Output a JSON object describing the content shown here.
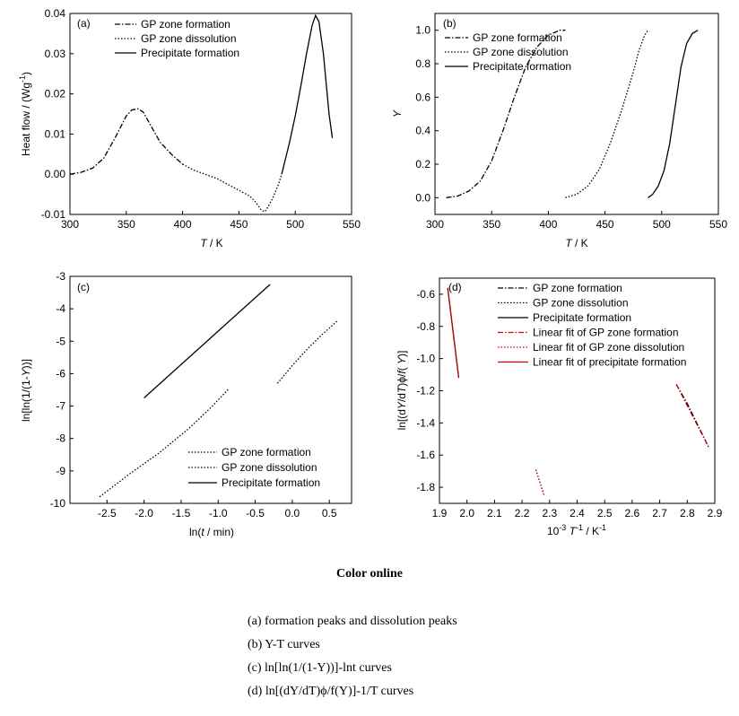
{
  "caption": {
    "title": "Color online",
    "lines": [
      "(a) formation peaks and dissolution peaks",
      "(b) Y-T curves",
      "(c) ln[ln(1/(1-Y))]-lnt curves",
      "(d) ln[(dY/dT)ϕ/f(Y)]-1/T curves"
    ]
  },
  "chart_data": [
    {
      "type": "line",
      "panel": "(a)",
      "xlabel": "T / K",
      "ylabel": "Heat flow / (Wg-1)",
      "xlim": [
        300,
        550
      ],
      "ylim": [
        -0.01,
        0.04
      ],
      "xticks": [
        300,
        350,
        400,
        450,
        500,
        550
      ],
      "yticks": [
        -0.01,
        0.0,
        0.01,
        0.02,
        0.03,
        0.04
      ],
      "ytick_labels": [
        "-0.01",
        "0.00",
        "0.01",
        "0.02",
        "0.03",
        "0.04"
      ],
      "legend": "top-left",
      "series": [
        {
          "name": "GP zone formation",
          "style": "dashdot",
          "x": [
            300,
            310,
            320,
            330,
            340,
            350,
            355,
            360,
            365,
            370,
            380,
            390,
            400
          ],
          "y": [
            0.0,
            0.0005,
            0.0015,
            0.004,
            0.009,
            0.0145,
            0.016,
            0.0163,
            0.0155,
            0.013,
            0.008,
            0.005,
            0.0025
          ]
        },
        {
          "name": "GP zone dissolution",
          "style": "dotted",
          "x": [
            400,
            410,
            420,
            430,
            440,
            450,
            460,
            465,
            470,
            473,
            476,
            480,
            485,
            488
          ],
          "y": [
            0.0025,
            0.001,
            0.0,
            -0.001,
            -0.0025,
            -0.004,
            -0.0055,
            -0.007,
            -0.009,
            -0.0093,
            -0.008,
            -0.006,
            -0.0025,
            0.0
          ]
        },
        {
          "name": "Precipitate formation",
          "style": "solid",
          "x": [
            488,
            495,
            500,
            505,
            510,
            515,
            518,
            521,
            525,
            530,
            533
          ],
          "y": [
            0.0,
            0.008,
            0.0145,
            0.022,
            0.03,
            0.037,
            0.0395,
            0.038,
            0.03,
            0.015,
            0.009
          ]
        }
      ]
    },
    {
      "type": "line",
      "panel": "(b)",
      "xlabel": "T / K",
      "ylabel": "Y",
      "xlim": [
        300,
        550
      ],
      "ylim": [
        -0.1,
        1.1
      ],
      "xticks": [
        300,
        350,
        400,
        450,
        500,
        550
      ],
      "yticks": [
        0.0,
        0.2,
        0.4,
        0.6,
        0.8,
        1.0
      ],
      "ytick_labels": [
        "0.0",
        "0.2",
        "0.4",
        "0.6",
        "0.8",
        "1.0"
      ],
      "legend": "top-left",
      "series": [
        {
          "name": "GP zone formation",
          "style": "dashdot",
          "x": [
            310,
            320,
            330,
            340,
            350,
            360,
            370,
            380,
            390,
            400,
            410,
            415
          ],
          "y": [
            0.0,
            0.01,
            0.04,
            0.1,
            0.22,
            0.4,
            0.6,
            0.78,
            0.9,
            0.97,
            1.0,
            1.0
          ]
        },
        {
          "name": "GP zone dissolution",
          "style": "dotted",
          "x": [
            415,
            425,
            435,
            445,
            455,
            465,
            475,
            480,
            485,
            488
          ],
          "y": [
            0.0,
            0.02,
            0.07,
            0.17,
            0.33,
            0.53,
            0.75,
            0.88,
            0.97,
            1.0
          ]
        },
        {
          "name": "Precipitate formation",
          "style": "solid",
          "x": [
            488,
            492,
            497,
            502,
            507,
            512,
            517,
            522,
            527,
            532
          ],
          "y": [
            0.0,
            0.02,
            0.07,
            0.16,
            0.32,
            0.55,
            0.78,
            0.92,
            0.98,
            1.0
          ]
        }
      ]
    },
    {
      "type": "line",
      "panel": "(c)",
      "xlabel": "ln(t / min)",
      "ylabel": "ln[ln(1/(1-Y))]",
      "xlim": [
        -3.0,
        0.8
      ],
      "ylim": [
        -10,
        -3
      ],
      "xticks": [
        -2.5,
        -2.0,
        -1.5,
        -1.0,
        -0.5,
        0.0,
        0.5
      ],
      "xtick_labels": [
        "-2.5",
        "-2.0",
        "-1.5",
        "-1.0",
        "-0.5",
        "0.0",
        "0.5"
      ],
      "yticks": [
        -10,
        -9,
        -8,
        -7,
        -6,
        -5,
        -4,
        -3
      ],
      "ytick_labels": [
        "-10",
        "-9",
        "-8",
        "-7",
        "-6",
        "-5",
        "-4",
        "-3"
      ],
      "legend": "bottom-right",
      "series": [
        {
          "name": "GP zone formation",
          "style": "dotted",
          "x": [
            -2.6,
            -2.2,
            -1.8,
            -1.4,
            -1.1,
            -0.85
          ],
          "y": [
            -9.8,
            -9.1,
            -8.45,
            -7.7,
            -7.05,
            -6.45
          ]
        },
        {
          "name": "GP zone dissolution",
          "style": "dotted",
          "x": [
            -0.2,
            0.0,
            0.2,
            0.4,
            0.62
          ],
          "y": [
            -6.3,
            -5.75,
            -5.25,
            -4.8,
            -4.35
          ]
        },
        {
          "name": "Precipitate formation",
          "style": "solid",
          "x": [
            -2.0,
            -0.3
          ],
          "y": [
            -6.75,
            -3.25
          ]
        }
      ]
    },
    {
      "type": "line",
      "panel": "(d)",
      "xlabel": "10-3 T-1 / K-1",
      "ylabel": "ln[(dY/dT)ϕ/f(Y)]",
      "xlim": [
        1.9,
        2.9
      ],
      "ylim": [
        -1.9,
        -0.5
      ],
      "xticks": [
        1.9,
        2.0,
        2.1,
        2.2,
        2.3,
        2.4,
        2.5,
        2.6,
        2.7,
        2.8,
        2.9
      ],
      "xtick_labels": [
        "1.9",
        "2.0",
        "2.1",
        "2.2",
        "2.3",
        "2.4",
        "2.5",
        "2.6",
        "2.7",
        "2.8",
        "2.9"
      ],
      "yticks": [
        -1.8,
        -1.6,
        -1.4,
        -1.2,
        -1.0,
        -0.8,
        -0.6
      ],
      "ytick_labels": [
        "-1.8",
        "-1.6",
        "-1.4",
        "-1.2",
        "-1.0",
        "-0.8",
        "-0.6"
      ],
      "legend": "top-right",
      "series": [
        {
          "name": "GP zone formation",
          "style": "dashdot",
          "color": "#000000",
          "x": [
            2.76,
            2.8,
            2.84,
            2.88
          ],
          "y": [
            -1.16,
            -1.28,
            -1.42,
            -1.56
          ]
        },
        {
          "name": "GP zone dissolution",
          "style": "dotted",
          "color": "#000000",
          "x": [
            2.25,
            2.28
          ],
          "y": [
            -1.69,
            -1.85
          ]
        },
        {
          "name": "Precipitate formation",
          "style": "solid",
          "color": "#000000",
          "x": [
            1.93,
            1.97
          ],
          "y": [
            -0.56,
            -1.12
          ]
        },
        {
          "name": "Linear fit of GP zone formation",
          "style": "dashdot",
          "color": "#cc0000",
          "x": [
            2.76,
            2.88
          ],
          "y": [
            -1.16,
            -1.56
          ]
        },
        {
          "name": "Linear fit of GP zone dissolution",
          "style": "dotted",
          "color": "#cc0000",
          "x": [
            2.25,
            2.28
          ],
          "y": [
            -1.69,
            -1.85
          ]
        },
        {
          "name": "Linear fit of precipitate formation",
          "style": "solid",
          "color": "#cc0000",
          "x": [
            1.93,
            1.97
          ],
          "y": [
            -0.56,
            -1.12
          ]
        }
      ]
    }
  ]
}
